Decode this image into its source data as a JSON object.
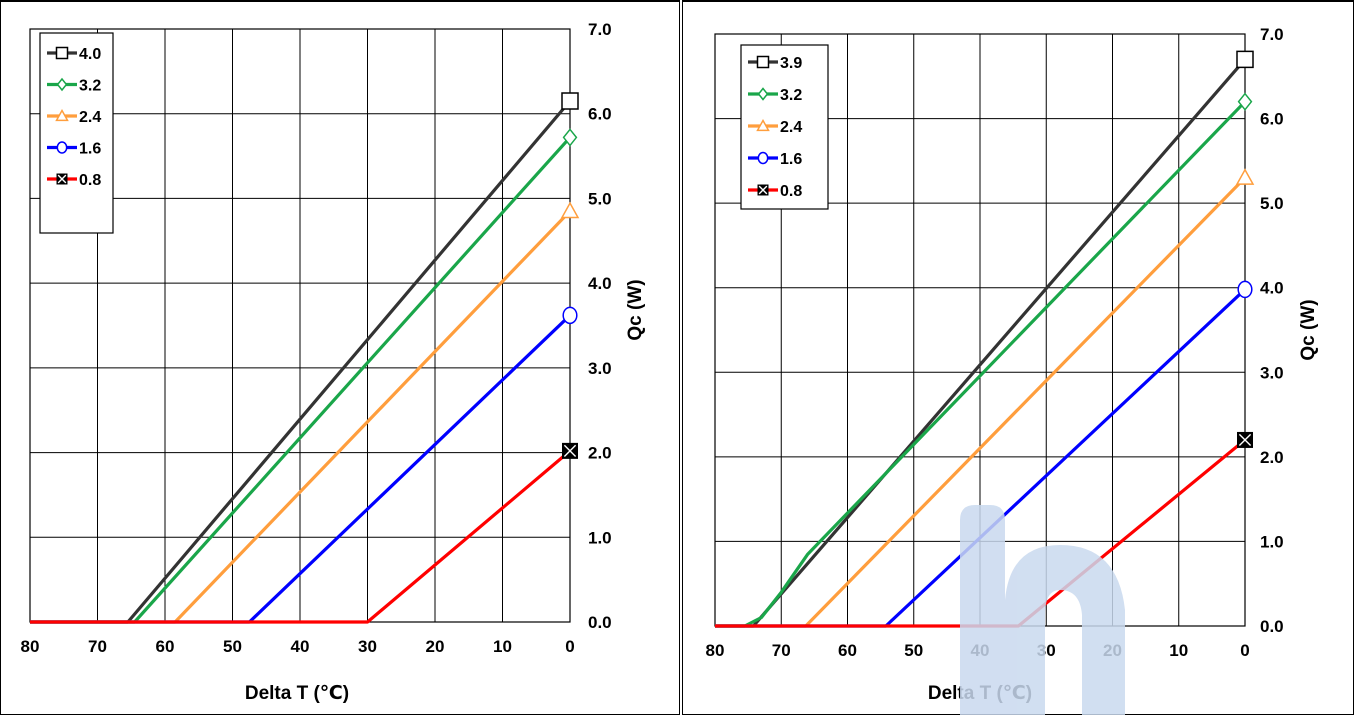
{
  "colors": {
    "series_0": "#333333",
    "series_1": "#1aa64a",
    "series_2": "#ff9e3d",
    "series_3": "#0000ff",
    "series_4": "#ff0000",
    "grid": "#000000",
    "watermark": "#c9d9ef"
  },
  "chart_data": [
    {
      "type": "line",
      "xlabel": "Delta T (℃)",
      "ylabel": "Qc (W)",
      "xlim": [
        80,
        0
      ],
      "ylim": [
        0,
        7
      ],
      "x_ticks": [
        "80",
        "70",
        "60",
        "50",
        "40",
        "30",
        "20",
        "10",
        "0"
      ],
      "y_ticks": [
        "0.0",
        "1.0",
        "2.0",
        "3.0",
        "4.0",
        "5.0",
        "6.0",
        "7.0"
      ],
      "grid": true,
      "legend_position": "top-left",
      "series": [
        {
          "name": "4.0",
          "marker": "square",
          "points": [
            [
              80,
              0
            ],
            [
              65.5,
              0
            ],
            [
              0,
              6.15
            ]
          ]
        },
        {
          "name": "3.2",
          "marker": "diamond",
          "points": [
            [
              80,
              0
            ],
            [
              64.5,
              0
            ],
            [
              0,
              5.72
            ]
          ]
        },
        {
          "name": "2.4",
          "marker": "triangle",
          "points": [
            [
              80,
              0
            ],
            [
              58.5,
              0
            ],
            [
              0,
              4.85
            ]
          ]
        },
        {
          "name": "1.6",
          "marker": "circle",
          "points": [
            [
              80,
              0
            ],
            [
              47.5,
              0
            ],
            [
              0,
              3.62
            ]
          ]
        },
        {
          "name": "0.8",
          "marker": "x-square",
          "points": [
            [
              80,
              0
            ],
            [
              30.0,
              0
            ],
            [
              0,
              2.02
            ]
          ]
        }
      ]
    },
    {
      "type": "line",
      "xlabel": "Delta T (℃)",
      "ylabel": "Qc (W)",
      "xlim": [
        80,
        0
      ],
      "ylim": [
        0,
        7
      ],
      "x_ticks": [
        "80",
        "70",
        "60",
        "50",
        "40",
        "30",
        "20",
        "10",
        "0"
      ],
      "y_ticks": [
        "0.0",
        "1.0",
        "2.0",
        "3.0",
        "4.0",
        "5.0",
        "6.0",
        "7.0"
      ],
      "grid": true,
      "legend_position": "top-left",
      "series": [
        {
          "name": "3.9",
          "marker": "square",
          "points": [
            [
              80,
              0
            ],
            [
              74.2,
              0
            ],
            [
              0,
              6.7
            ]
          ]
        },
        {
          "name": "3.2",
          "marker": "diamond",
          "points": [
            [
              80,
              0
            ],
            [
              75.5,
              0
            ],
            [
              73,
              0.1
            ],
            [
              70,
              0.4
            ],
            [
              66,
              0.85
            ],
            [
              0,
              6.2
            ]
          ]
        },
        {
          "name": "2.4",
          "marker": "triangle",
          "points": [
            [
              80,
              0
            ],
            [
              66.3,
              0
            ],
            [
              0,
              5.3
            ]
          ]
        },
        {
          "name": "1.6",
          "marker": "circle",
          "points": [
            [
              80,
              0
            ],
            [
              54.2,
              0
            ],
            [
              0,
              3.98
            ]
          ]
        },
        {
          "name": "0.8",
          "marker": "x-square",
          "points": [
            [
              80,
              0
            ],
            [
              34.2,
              0
            ],
            [
              0,
              2.2
            ]
          ]
        }
      ]
    }
  ]
}
